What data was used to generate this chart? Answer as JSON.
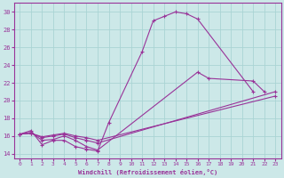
{
  "xlabel": "Windchill (Refroidissement éolien,°C)",
  "bg_color": "#cce8e8",
  "grid_color": "#aad4d4",
  "line_color": "#993399",
  "x_ticks": [
    0,
    1,
    2,
    3,
    4,
    5,
    6,
    7,
    8,
    9,
    10,
    11,
    12,
    13,
    14,
    15,
    16,
    17,
    18,
    19,
    20,
    21,
    22,
    23
  ],
  "y_ticks": [
    14,
    16,
    18,
    20,
    22,
    24,
    26,
    28,
    30
  ],
  "ylim": [
    13.5,
    31.0
  ],
  "xlim": [
    -0.5,
    23.5
  ],
  "series0_x": [
    0,
    1,
    2,
    3,
    4,
    5,
    6,
    7,
    8,
    11,
    12,
    13,
    14,
    15,
    16,
    21
  ],
  "series0_y": [
    16.2,
    16.6,
    15.0,
    15.5,
    15.5,
    14.8,
    14.5,
    14.3,
    17.5,
    25.5,
    29.0,
    29.5,
    30.0,
    29.8,
    29.2,
    21.0
  ],
  "series1_x": [
    0,
    1,
    2,
    3,
    4,
    5,
    6,
    7,
    16,
    17,
    21,
    22
  ],
  "series1_y": [
    16.2,
    16.4,
    15.5,
    15.6,
    16.0,
    15.5,
    14.8,
    14.4,
    23.2,
    22.5,
    22.2,
    21.0
  ],
  "series2_x": [
    0,
    1,
    2,
    3,
    4,
    5,
    6,
    7,
    23
  ],
  "series2_y": [
    16.2,
    16.3,
    15.8,
    16.0,
    16.2,
    15.8,
    15.5,
    15.2,
    21.0
  ],
  "series3_x": [
    0,
    1,
    2,
    3,
    4,
    5,
    6,
    7,
    23
  ],
  "series3_y": [
    16.2,
    16.3,
    15.9,
    16.1,
    16.3,
    16.0,
    15.8,
    15.5,
    20.5
  ]
}
